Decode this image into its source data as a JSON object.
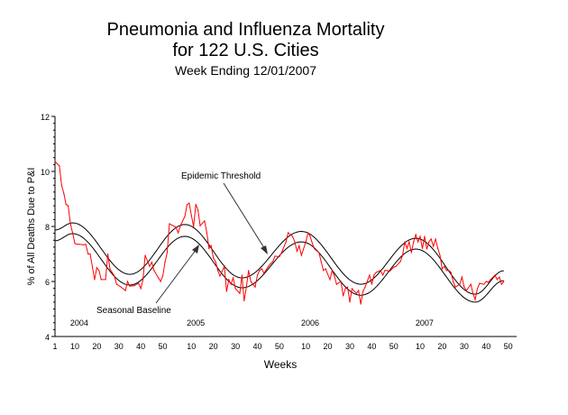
{
  "chart_data": {
    "type": "line",
    "title": "Pneumonia and Influenza Mortality",
    "title_line2": "for 122 U.S. Cities",
    "subtitle": "Week Ending 12/01/2007",
    "xlabel": "Weeks",
    "ylabel": "% of All Deaths Due to P&I",
    "ylim": [
      4,
      12
    ],
    "yticks": [
      "4",
      "6",
      "8",
      "10",
      "12"
    ],
    "years": [
      "2004",
      "2005",
      "2006",
      "2007"
    ],
    "year_weeks": {
      "2004": 53,
      "2005": 52,
      "2006": 52,
      "2007": 52
    },
    "xtick_labels": {
      "2004": [
        1,
        10,
        20,
        30,
        40,
        50
      ],
      "2005": [
        10,
        20,
        30,
        40,
        50
      ],
      "2006": [
        10,
        20,
        30,
        40,
        50
      ],
      "2007": [
        10,
        20,
        30,
        40,
        50
      ]
    },
    "grid": false,
    "colors": {
      "observed": "#ff0000",
      "baseline": "#000000",
      "threshold": "#000000"
    },
    "annotations": {
      "threshold_label": "Epidemic Threshold",
      "baseline_label": "Seasonal Baseline"
    },
    "series": {
      "observed": {
        "2004": [
          [
            1,
            10.36
          ],
          [
            3,
            10.2
          ],
          [
            4,
            9.5
          ],
          [
            5,
            9.2
          ],
          [
            6,
            8.8
          ],
          [
            7,
            8.75
          ],
          [
            8,
            8.1
          ],
          [
            9,
            7.77
          ],
          [
            10,
            7.38
          ],
          [
            11,
            7.35
          ],
          [
            12,
            7.35
          ],
          [
            14,
            7.33
          ],
          [
            15,
            7.35
          ],
          [
            16,
            7.0
          ],
          [
            17,
            7.0
          ],
          [
            19,
            6.07
          ],
          [
            20,
            6.5
          ],
          [
            21,
            6.4
          ],
          [
            22,
            6.07
          ],
          [
            24,
            6.07
          ],
          [
            25,
            7.0
          ],
          [
            26,
            6.45
          ],
          [
            28,
            6.2
          ],
          [
            29,
            5.9
          ],
          [
            31,
            5.8
          ],
          [
            33,
            5.67
          ],
          [
            34,
            6.0
          ],
          [
            35,
            5.83
          ],
          [
            37,
            5.85
          ],
          [
            39,
            5.93
          ],
          [
            40,
            5.74
          ],
          [
            41,
            6.07
          ],
          [
            42,
            6.95
          ],
          [
            44,
            6.55
          ],
          [
            45,
            6.7
          ],
          [
            46,
            6.4
          ],
          [
            48,
            6.13
          ],
          [
            49,
            6.0
          ],
          [
            50,
            6.2
          ],
          [
            51,
            6.7
          ],
          [
            52,
            7.05
          ],
          [
            53,
            8.1
          ]
        ],
        "2005": [
          [
            3,
            7.97
          ],
          [
            4,
            7.77
          ],
          [
            5,
            8.03
          ],
          [
            7,
            8.36
          ],
          [
            8,
            8.79
          ],
          [
            9,
            8.85
          ],
          [
            10,
            8.4
          ],
          [
            11,
            8.0
          ],
          [
            12,
            8.8
          ],
          [
            13,
            8.6
          ],
          [
            14,
            8.03
          ],
          [
            16,
            8.2
          ],
          [
            17,
            7.77
          ],
          [
            18,
            7.2
          ],
          [
            19,
            7.3
          ],
          [
            20,
            6.85
          ],
          [
            21,
            6.72
          ],
          [
            22,
            6.4
          ],
          [
            23,
            6.2
          ],
          [
            25,
            6.55
          ],
          [
            26,
            5.64
          ],
          [
            27,
            6.07
          ],
          [
            28,
            5.9
          ],
          [
            29,
            6.13
          ],
          [
            30,
            5.74
          ],
          [
            32,
            5.57
          ],
          [
            33,
            6.23
          ],
          [
            34,
            5.3
          ],
          [
            35,
            5.8
          ],
          [
            36,
            6.4
          ],
          [
            37,
            6.0
          ],
          [
            39,
            5.8
          ],
          [
            40,
            6.23
          ],
          [
            41,
            6.4
          ],
          [
            42,
            6.46
          ],
          [
            43,
            6.3
          ],
          [
            45,
            6.55
          ],
          [
            46,
            6.65
          ],
          [
            47,
            6.72
          ],
          [
            48,
            6.92
          ],
          [
            50,
            6.9
          ],
          [
            51,
            7.05
          ]
        ],
        "2006": [
          [
            1,
            7.44
          ],
          [
            2,
            7.77
          ],
          [
            3,
            7.7
          ],
          [
            4,
            7.64
          ],
          [
            5,
            7.44
          ],
          [
            6,
            7.1
          ],
          [
            7,
            7.3
          ],
          [
            8,
            6.95
          ],
          [
            10,
            7.44
          ],
          [
            11,
            7.77
          ],
          [
            12,
            7.64
          ],
          [
            13,
            7.38
          ],
          [
            14,
            7.18
          ],
          [
            16,
            7.05
          ],
          [
            17,
            6.72
          ],
          [
            18,
            6.4
          ],
          [
            19,
            6.46
          ],
          [
            21,
            6.07
          ],
          [
            22,
            6.4
          ],
          [
            23,
            6.2
          ],
          [
            24,
            5.9
          ],
          [
            26,
            6.0
          ],
          [
            27,
            5.48
          ],
          [
            28,
            5.74
          ],
          [
            29,
            5.8
          ],
          [
            30,
            5.25
          ],
          [
            31,
            5.74
          ],
          [
            33,
            5.57
          ],
          [
            34,
            5.67
          ],
          [
            35,
            5.18
          ],
          [
            36,
            5.64
          ],
          [
            37,
            5.8
          ],
          [
            39,
            6.23
          ],
          [
            40,
            5.9
          ],
          [
            41,
            6.23
          ],
          [
            42,
            6.33
          ],
          [
            44,
            6.4
          ],
          [
            45,
            6.23
          ],
          [
            46,
            6.4
          ],
          [
            47,
            6.4
          ],
          [
            48,
            6.36
          ],
          [
            50,
            6.52
          ],
          [
            51,
            6.55
          ]
        ],
        "2007": [
          [
            1,
            6.72
          ],
          [
            2,
            6.95
          ],
          [
            3,
            7.44
          ],
          [
            4,
            7.2
          ],
          [
            5,
            7.44
          ],
          [
            6,
            7.05
          ],
          [
            7,
            7.44
          ],
          [
            8,
            7.7
          ],
          [
            9,
            7.44
          ],
          [
            10,
            7.64
          ],
          [
            11,
            7.2
          ],
          [
            12,
            7.64
          ],
          [
            13,
            7.18
          ],
          [
            14,
            7.44
          ],
          [
            15,
            7.54
          ],
          [
            16,
            7.28
          ],
          [
            17,
            7.54
          ],
          [
            18,
            7.2
          ],
          [
            19,
            6.95
          ],
          [
            20,
            6.46
          ],
          [
            21,
            6.55
          ],
          [
            22,
            6.4
          ],
          [
            23,
            6.4
          ],
          [
            24,
            6.33
          ],
          [
            25,
            6.0
          ],
          [
            26,
            5.8
          ],
          [
            28,
            5.9
          ],
          [
            29,
            6.16
          ],
          [
            30,
            5.8
          ],
          [
            31,
            5.67
          ],
          [
            33,
            5.9
          ],
          [
            34,
            5.57
          ],
          [
            35,
            5.34
          ],
          [
            36,
            5.74
          ],
          [
            37,
            5.93
          ],
          [
            39,
            5.9
          ],
          [
            40,
            6.0
          ],
          [
            41,
            5.97
          ],
          [
            42,
            6.07
          ],
          [
            44,
            6.23
          ],
          [
            45,
            6.07
          ],
          [
            46,
            6.16
          ],
          [
            47,
            5.9
          ],
          [
            48,
            6.0
          ]
        ]
      },
      "baseline": [
        [
          "2004",
          1,
          7.48
        ],
        [
          "2004",
          9,
          7.74
        ],
        [
          "2004",
          35,
          5.87
        ],
        [
          "2005",
          7,
          7.64
        ],
        [
          "2005",
          33,
          5.77
        ],
        [
          "2006",
          8,
          7.44
        ],
        [
          "2006",
          35,
          5.5
        ],
        [
          "2007",
          8,
          7.18
        ],
        [
          "2007",
          35,
          5.25
        ],
        [
          "2007",
          48,
          6.03
        ]
      ],
      "threshold": [
        [
          "2004",
          1,
          7.87
        ],
        [
          "2004",
          9,
          8.13
        ],
        [
          "2004",
          35,
          6.26
        ],
        [
          "2005",
          7,
          8.07
        ],
        [
          "2005",
          33,
          6.13
        ],
        [
          "2006",
          8,
          7.82
        ],
        [
          "2006",
          35,
          5.9
        ],
        [
          "2007",
          8,
          7.57
        ],
        [
          "2007",
          35,
          5.54
        ],
        [
          "2007",
          48,
          6.39
        ]
      ]
    }
  }
}
